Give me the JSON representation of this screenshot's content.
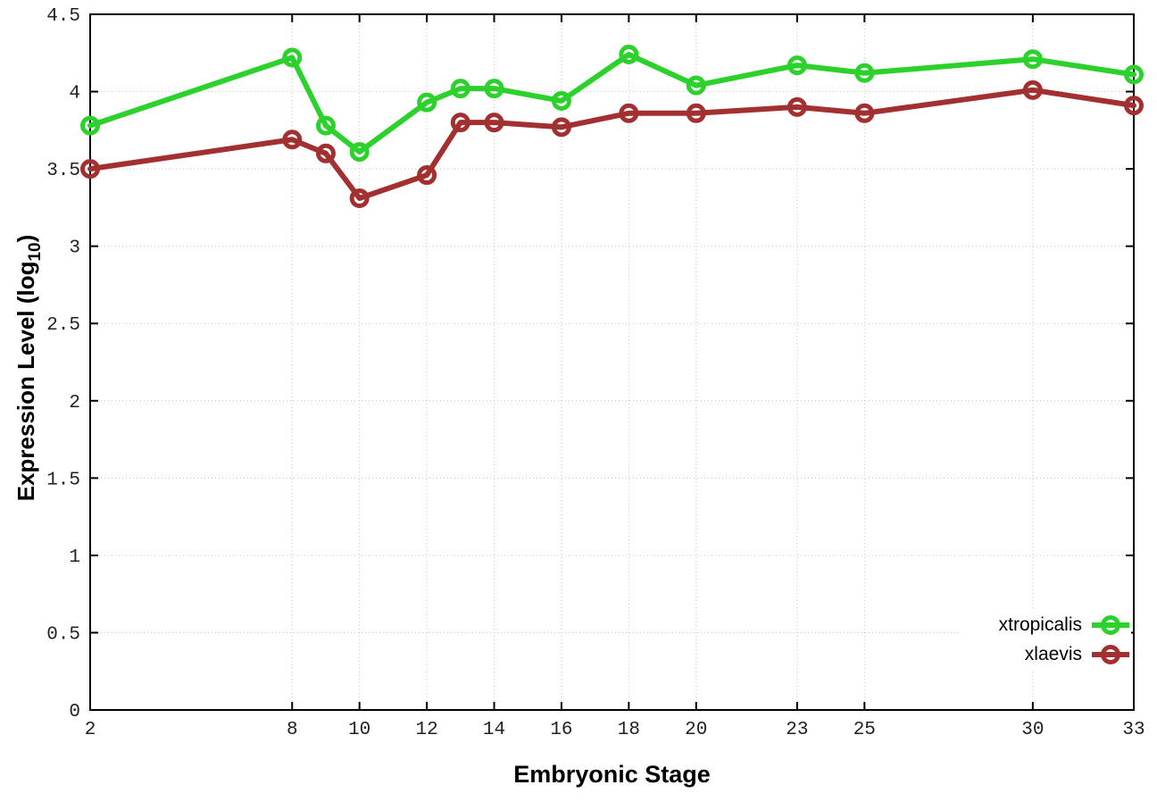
{
  "labels": {
    "ylabel_pre": "Expression Level (log",
    "ylabel_sub": "10",
    "ylabel_post": ")"
  },
  "chart_data": {
    "type": "line",
    "title": "",
    "xlabel": "Embryonic Stage",
    "ylabel": "Expression Level (log10)",
    "xlim": [
      2,
      33
    ],
    "ylim": [
      0,
      4.5
    ],
    "grid": true,
    "legend_position": "bottom-right",
    "x": [
      2,
      8,
      9,
      10,
      12,
      13,
      14,
      16,
      18,
      20,
      23,
      25,
      30,
      33
    ],
    "x_ticks": [
      "2",
      "8",
      "10",
      "12",
      "14",
      "16",
      "18",
      "20",
      "23",
      "25",
      "30",
      "33"
    ],
    "y_ticks": [
      "0",
      "0.5",
      "1",
      "1.5",
      "2",
      "2.5",
      "3",
      "3.5",
      "4",
      "4.5"
    ],
    "series": [
      {
        "name": "xtropicalis",
        "color": "#2cd12c",
        "values": [
          3.78,
          4.22,
          3.78,
          3.61,
          3.93,
          4.02,
          4.02,
          3.94,
          4.24,
          4.04,
          4.17,
          4.12,
          4.21,
          4.11
        ]
      },
      {
        "name": "xlaevis",
        "color": "#a33030",
        "values": [
          3.5,
          3.69,
          3.6,
          3.31,
          3.46,
          3.8,
          3.8,
          3.77,
          3.86,
          3.86,
          3.9,
          3.86,
          4.01,
          3.91
        ]
      }
    ]
  }
}
